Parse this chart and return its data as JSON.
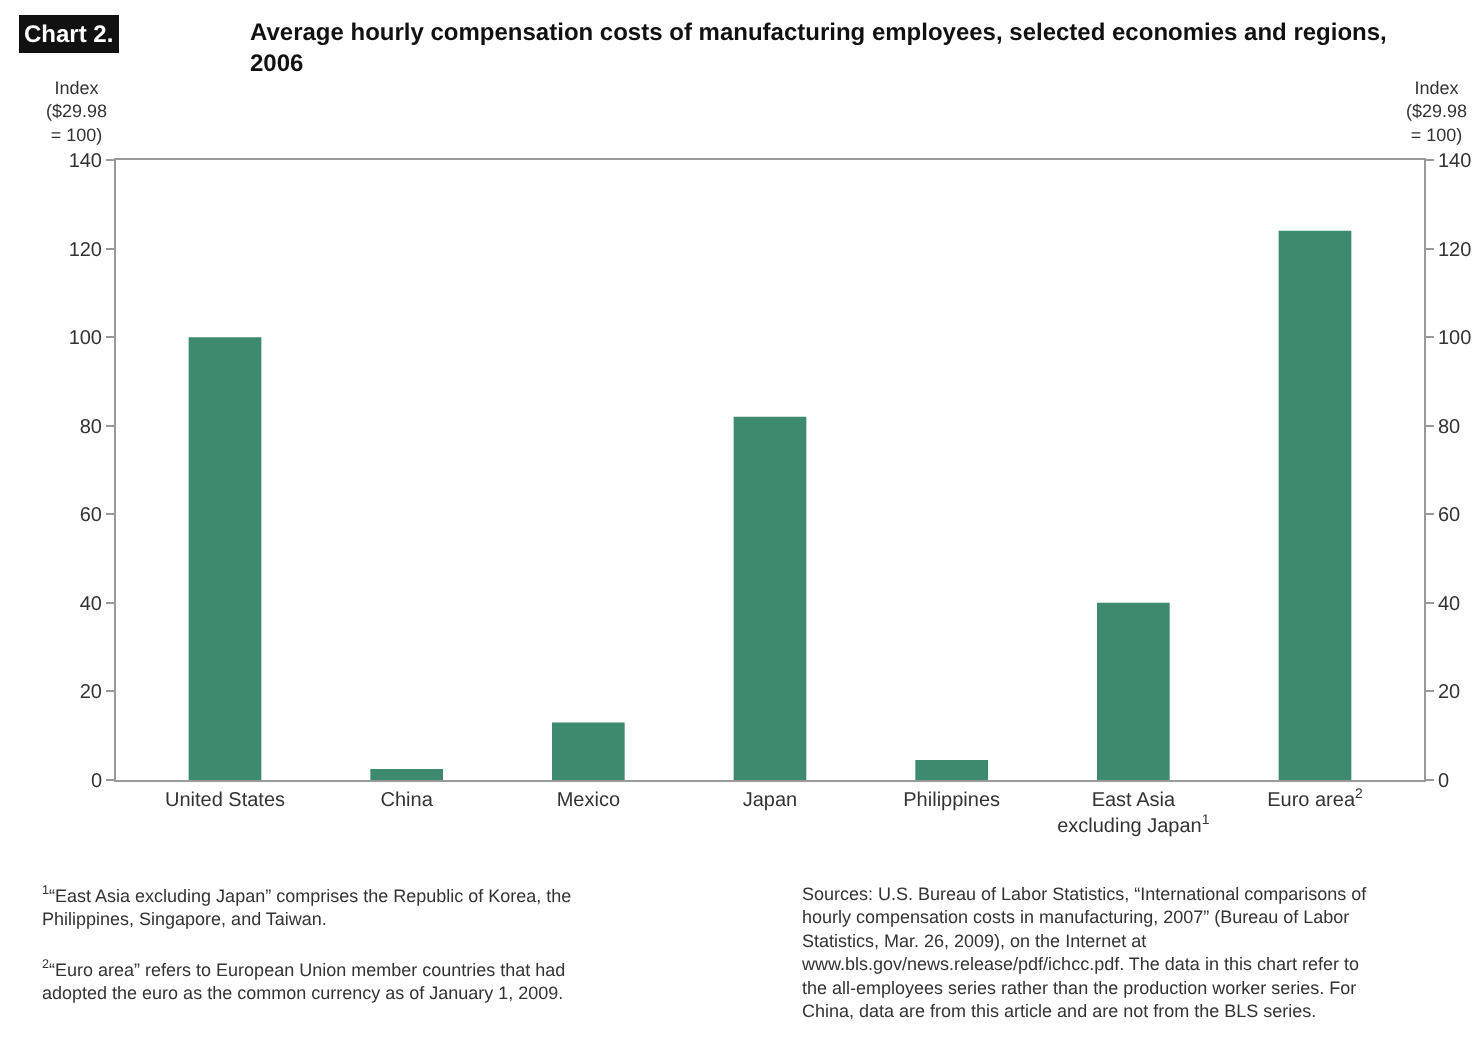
{
  "chart_data": {
    "type": "bar",
    "title": "Average hourly compensation costs of manufacturing employees, selected economies and regions, 2006",
    "ylabel": "Index ($29.98 = 100)",
    "y2label": "Index ($29.98 = 100)",
    "categories": [
      "United States",
      "China",
      "Mexico",
      "Japan",
      "Philippines",
      "East Asia excluding Japan$^{1}$",
      "Euro area$^{2}$"
    ],
    "values": [
      100,
      2.5,
      13,
      82,
      4.5,
      40,
      124
    ],
    "color": "#3d8a6e",
    "ylim": [
      0,
      140
    ],
    "yticks": [
      0,
      20,
      40,
      60,
      80,
      100,
      120,
      140
    ],
    "y2lim": [
      0,
      140
    ],
    "y2ticks": [
      0,
      20,
      40,
      60,
      80,
      100,
      120,
      140
    ],
    "grid": false,
    "annotations": [
      "Chart 2.",
      "$^{1}$“East Asia excluding Japan” comprises the Republic of Korea, the Philippines, Singapore, and Taiwan.",
      "$^{2}$“Euro area” refers to European Union member countries that had adopted the euro as the common currency as of January 1, 2009.",
      "Sources: U.S. Bureau of Labor Statistics, “International comparisons of hourly compensation costs in manufacturing, 2007” (Bureau of Labor Statistics, Mar. 26, 2009), on the Internet at www.bls.gov/news.release/pdf/ichcc.pdf. The data in this chart refer to the all-employees series rather than the production worker series. For China, data are from this article and are not from the BLS series."
    ]
  }
}
